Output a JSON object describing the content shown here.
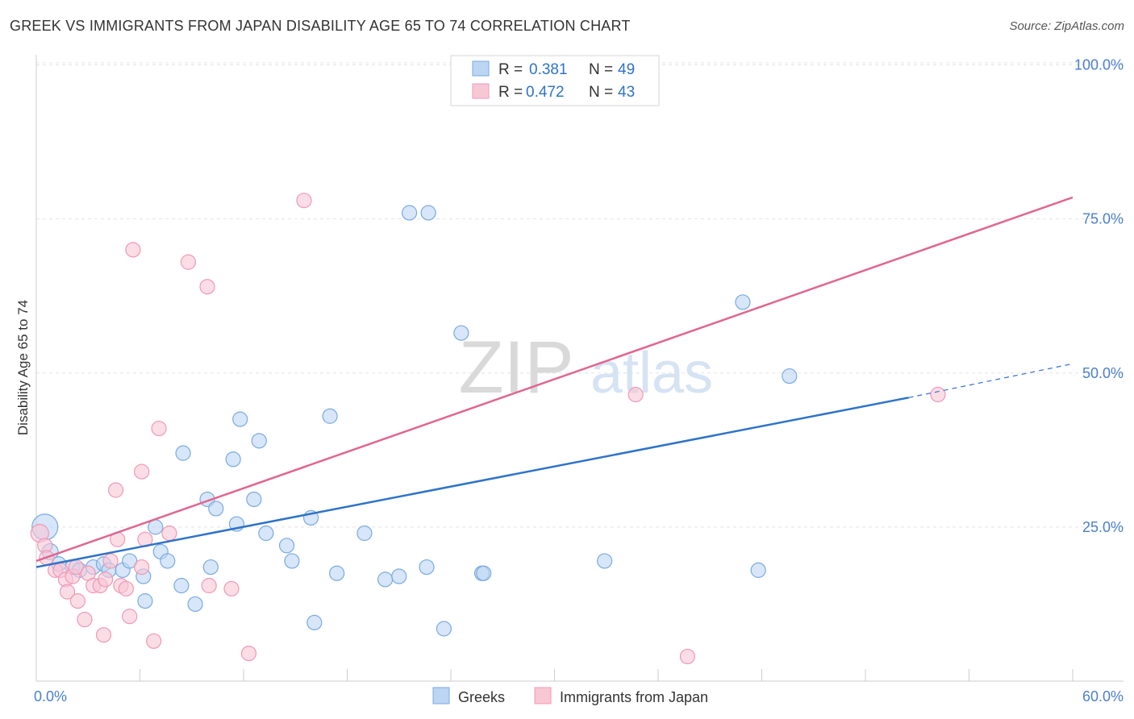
{
  "chart_data": {
    "type": "scatter",
    "title": "GREEK VS IMMIGRANTS FROM JAPAN DISABILITY AGE 65 TO 74 CORRELATION CHART",
    "source": "Source: ZipAtlas.com",
    "watermark": {
      "zip": "ZIP",
      "atlas": "atlas"
    },
    "xlabel": "",
    "ylabel": "Disability Age 65 to 74",
    "xlim": [
      0,
      60
    ],
    "ylim": [
      0,
      105
    ],
    "x_ticks": [
      {
        "value": 0,
        "label": "0.0%"
      },
      {
        "value": 60,
        "label": "60.0%"
      }
    ],
    "y_ticks": [
      {
        "value": 25,
        "label": "25.0%"
      },
      {
        "value": 50,
        "label": "50.0%"
      },
      {
        "value": 75,
        "label": "75.0%"
      },
      {
        "value": 100,
        "label": "100.0%"
      }
    ],
    "legend_stats": [
      {
        "r_label": "R =",
        "r_value": "0.381",
        "n_label": "N =",
        "n_value": "49"
      },
      {
        "r_label": "R =",
        "r_value": "0.472",
        "n_label": "N =",
        "n_value": "43"
      }
    ],
    "series": [
      {
        "name": "Greeks",
        "color": "#7aaae0",
        "fill": "#bcd5f3",
        "line_color": "#2f73c9",
        "trend": {
          "x0": 0,
          "y0": 18.5,
          "x1": 50.5,
          "y1": 46,
          "dash_to_x": 60,
          "dash_to_y": 51.5
        },
        "points": [
          [
            0.5,
            25,
            16
          ],
          [
            0.8,
            21,
            10
          ],
          [
            1.3,
            19,
            9
          ],
          [
            2.1,
            18.5,
            9
          ],
          [
            2.5,
            18,
            9
          ],
          [
            3.3,
            18.5,
            9
          ],
          [
            3.9,
            19,
            9
          ],
          [
            4.2,
            18,
            9
          ],
          [
            5,
            18,
            9
          ],
          [
            5.4,
            19.5,
            9
          ],
          [
            6.2,
            17,
            9
          ],
          [
            6.3,
            13,
            9
          ],
          [
            6.9,
            25,
            9
          ],
          [
            7.2,
            21,
            9
          ],
          [
            7.6,
            19.5,
            9
          ],
          [
            8.4,
            15.5,
            9
          ],
          [
            8.5,
            37,
            9
          ],
          [
            9.2,
            12.5,
            9
          ],
          [
            9.9,
            29.5,
            9
          ],
          [
            10.1,
            18.5,
            9
          ],
          [
            10.4,
            28,
            9
          ],
          [
            11.4,
            36,
            9
          ],
          [
            11.6,
            25.5,
            9
          ],
          [
            11.8,
            42.5,
            9
          ],
          [
            12.6,
            29.5,
            9
          ],
          [
            12.9,
            39,
            9
          ],
          [
            13.3,
            24,
            9
          ],
          [
            14.5,
            22,
            9
          ],
          [
            14.8,
            19.5,
            9
          ],
          [
            15.9,
            26.5,
            9
          ],
          [
            16.1,
            9.5,
            9
          ],
          [
            17,
            43,
            9
          ],
          [
            17.4,
            17.5,
            9
          ],
          [
            19,
            24,
            9
          ],
          [
            20.2,
            16.5,
            9
          ],
          [
            21,
            17,
            9
          ],
          [
            21.6,
            76,
            9
          ],
          [
            22.6,
            18.5,
            9
          ],
          [
            22.7,
            76,
            9
          ],
          [
            23.6,
            8.5,
            9
          ],
          [
            24.6,
            56.5,
            9
          ],
          [
            25.8,
            17.5,
            9
          ],
          [
            25.9,
            17.5,
            9
          ],
          [
            32.9,
            19.5,
            9
          ],
          [
            40.9,
            61.5,
            9
          ],
          [
            41.8,
            18,
            9
          ],
          [
            43.6,
            49.5,
            9
          ]
        ]
      },
      {
        "name": "Immigrants from Japan",
        "color": "#f098b5",
        "fill": "#f8c7d6",
        "line_color": "#e0668f",
        "trend": {
          "x0": 0,
          "y0": 19.5,
          "x1": 60,
          "y1": 78.5
        },
        "points": [
          [
            0.2,
            24,
            11
          ],
          [
            0.5,
            22,
            9
          ],
          [
            0.6,
            20,
            9
          ],
          [
            1.1,
            18,
            9
          ],
          [
            1.4,
            18,
            9
          ],
          [
            1.7,
            16.5,
            9
          ],
          [
            1.8,
            14.5,
            9
          ],
          [
            2.1,
            17,
            9
          ],
          [
            2.3,
            18.5,
            9
          ],
          [
            2.4,
            13,
            9
          ],
          [
            2.8,
            10,
            9
          ],
          [
            3,
            17.5,
            9
          ],
          [
            3.3,
            15.5,
            9
          ],
          [
            3.7,
            15.5,
            9
          ],
          [
            3.9,
            7.5,
            9
          ],
          [
            4,
            16.5,
            9
          ],
          [
            4.3,
            19.5,
            9
          ],
          [
            4.6,
            31,
            9
          ],
          [
            4.7,
            23,
            9
          ],
          [
            4.9,
            15.5,
            9
          ],
          [
            5.2,
            15,
            9
          ],
          [
            5.4,
            10.5,
            9
          ],
          [
            5.6,
            70,
            9
          ],
          [
            6.1,
            18.5,
            9
          ],
          [
            6.1,
            34,
            9
          ],
          [
            6.3,
            23,
            9
          ],
          [
            6.8,
            6.5,
            9
          ],
          [
            7.1,
            41,
            9
          ],
          [
            7.7,
            24,
            9
          ],
          [
            8.8,
            68,
            9
          ],
          [
            9.9,
            64,
            9
          ],
          [
            10,
            15.5,
            9
          ],
          [
            11.3,
            15,
            9
          ],
          [
            12.3,
            4.5,
            9
          ],
          [
            15.5,
            78,
            9
          ],
          [
            34.7,
            46.5,
            9
          ],
          [
            37.7,
            4,
            9
          ],
          [
            52.2,
            46.5,
            9
          ]
        ]
      }
    ]
  }
}
